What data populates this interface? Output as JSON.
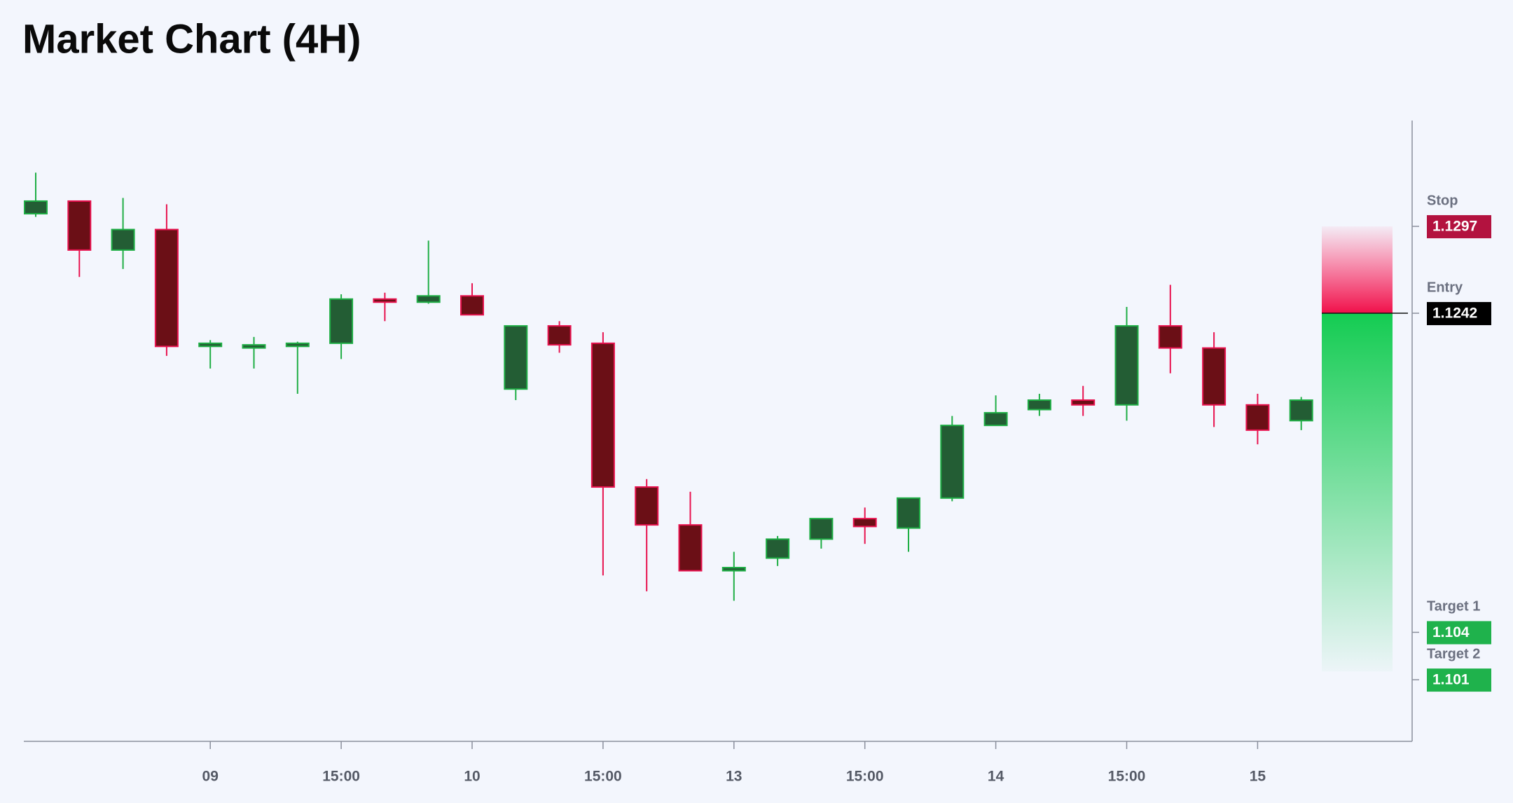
{
  "chart_data": {
    "type": "candlestick",
    "title": "Market Chart (4H)",
    "categories": [
      null,
      null,
      null,
      null,
      "09",
      null,
      null,
      "15:00",
      null,
      null,
      "10",
      null,
      null,
      "15:00",
      null,
      null,
      "13",
      null,
      null,
      "15:00",
      null,
      null,
      "14",
      null,
      null,
      "15:00",
      null,
      null,
      "15",
      null
    ],
    "open": [
      1.1305,
      1.1313,
      1.1282,
      1.1295,
      1.1221,
      1.122,
      1.1221,
      1.1223,
      1.1251,
      1.1249,
      1.1253,
      1.1194,
      1.1234,
      1.1223,
      1.1132,
      1.1108,
      1.1079,
      1.1087,
      1.1099,
      1.1112,
      1.1106,
      1.1125,
      1.1171,
      1.1181,
      1.1187,
      1.1184,
      1.1234,
      1.122,
      1.1184,
      1.1174
    ],
    "high": [
      1.1331,
      1.1313,
      1.1315,
      1.1311,
      1.1225,
      1.1227,
      1.1224,
      1.1254,
      1.1255,
      1.1288,
      1.1261,
      1.1234,
      1.1237,
      1.123,
      1.1137,
      1.1129,
      1.1091,
      1.1101,
      1.1112,
      1.1119,
      1.1125,
      1.1177,
      1.119,
      1.1191,
      1.1196,
      1.1246,
      1.126,
      1.123,
      1.1191,
      1.1189
    ],
    "low": [
      1.1303,
      1.1265,
      1.127,
      1.1215,
      1.1207,
      1.1207,
      1.1191,
      1.1213,
      1.1237,
      1.1248,
      1.1241,
      1.1187,
      1.1217,
      1.1076,
      1.1066,
      1.1079,
      1.106,
      1.1082,
      1.1093,
      1.1096,
      1.1091,
      1.1123,
      1.1171,
      1.1177,
      1.1177,
      1.1174,
      1.1204,
      1.117,
      1.1159,
      1.1168
    ],
    "close": [
      1.1313,
      1.1282,
      1.1295,
      1.1221,
      1.1223,
      1.1222,
      1.1223,
      1.1251,
      1.1249,
      1.1253,
      1.1241,
      1.1234,
      1.1222,
      1.1132,
      1.1108,
      1.1079,
      1.1081,
      1.1099,
      1.1112,
      1.1107,
      1.1125,
      1.1171,
      1.1179,
      1.1187,
      1.1184,
      1.1234,
      1.122,
      1.1184,
      1.1168,
      1.1187
    ],
    "up_color": "#1fae45",
    "up_fill": "#235d34",
    "down_color": "#e8134f",
    "down_fill": "#6b0f16",
    "ylim": [
      1.0971,
      1.1364
    ],
    "levels": [
      {
        "name": "Stop",
        "value": 1.1297,
        "color": "#b3123f"
      },
      {
        "name": "Entry",
        "value": 1.1242,
        "color": "#000000"
      },
      {
        "name": "Target 1",
        "value": 1.104,
        "color": "#1fb24c"
      },
      {
        "name": "Target 2",
        "value": 1.101,
        "color": "#1fb24c"
      }
    ]
  }
}
